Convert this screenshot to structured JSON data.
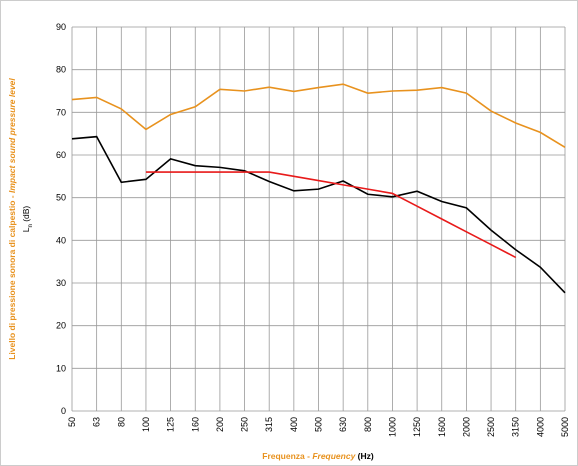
{
  "chart_data": {
    "type": "line",
    "y_label": [
      "Livello di pressione sonora di calpestio - ",
      "Impact sound pressure level"
    ],
    "y_unit_label": [
      "L",
      "n",
      " (dB)"
    ],
    "x_label": [
      "Frequenza - ",
      "Frequency",
      " (Hz)"
    ],
    "categories": [
      "50",
      "63",
      "80",
      "100",
      "125",
      "160",
      "200",
      "250",
      "315",
      "400",
      "500",
      "630",
      "800",
      "1000",
      "1250",
      "1600",
      "2000",
      "2500",
      "3150",
      "4000",
      "5000"
    ],
    "series": [
      {
        "color": "#e8921e",
        "values": [
          73,
          73.5,
          70.8,
          66,
          69.5,
          71.3,
          75.4,
          75,
          75.9,
          74.9,
          75.8,
          76.6,
          74.5,
          75,
          75.2,
          75.8,
          74.5,
          70.3,
          67.5,
          65.3,
          61.8
        ]
      },
      {
        "color": "#000000",
        "values": [
          63.8,
          64.3,
          53.6,
          54.3,
          59.1,
          57.5,
          57.1,
          56.3,
          53.8,
          51.6,
          52,
          53.9,
          50.8,
          50.2,
          51.5,
          49.1,
          47.6,
          42.4,
          37.8,
          33.7,
          27.7
        ]
      },
      {
        "color": "#e81a1a",
        "values": [
          null,
          null,
          null,
          56,
          56,
          56,
          56,
          56,
          56,
          55,
          54,
          53,
          52,
          51,
          48,
          45,
          42,
          39,
          36,
          null,
          null
        ]
      }
    ],
    "ylim": [
      0,
      90
    ],
    "yticks": [
      0,
      10,
      20,
      30,
      40,
      50,
      60,
      70,
      80,
      90
    ],
    "grid": true
  }
}
